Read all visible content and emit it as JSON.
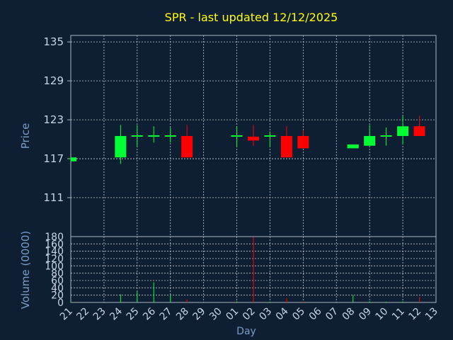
{
  "title": "SPR - last updated 12/12/2025",
  "colors": {
    "background": "#0f1f33",
    "title": "#ffff00",
    "axis_text": "#7a9cc6",
    "tick_text": "#c8d4e6",
    "frame": "#a9b4c2",
    "grid": "#c8ccd2",
    "up": "#00ff33",
    "down": "#ff0000"
  },
  "chart_data": [
    {
      "type": "candlestick",
      "ylabel": "Price",
      "yticks": [
        111,
        117,
        123,
        129,
        135
      ],
      "ylim": [
        105,
        136
      ],
      "grid": true,
      "categories": [
        "21",
        "22",
        "23",
        "24",
        "25",
        "26",
        "27",
        "28",
        "29",
        "30",
        "01",
        "02",
        "03",
        "04",
        "05",
        "06",
        "07",
        "08",
        "09",
        "10",
        "11",
        "12",
        "13"
      ],
      "candles": [
        {
          "x": "21",
          "open": 116.6,
          "close": 117.2,
          "high": 117.2,
          "low": 116.6
        },
        {
          "x": "24",
          "open": 117.2,
          "close": 120.5,
          "high": 122.2,
          "low": 116.2
        },
        {
          "x": "25",
          "open": 120.5,
          "close": 120.5,
          "high": 122.2,
          "low": 118.8
        },
        {
          "x": "26",
          "open": 120.5,
          "close": 120.5,
          "high": 122.0,
          "low": 119.5
        },
        {
          "x": "27",
          "open": 120.5,
          "close": 120.5,
          "high": 121.8,
          "low": 119.5
        },
        {
          "x": "28",
          "open": 120.5,
          "close": 117.2,
          "high": 122.2,
          "low": 117.2
        },
        {
          "x": "01",
          "open": 120.5,
          "close": 120.5,
          "high": 122.0,
          "low": 118.8
        },
        {
          "x": "02",
          "open": 120.4,
          "close": 119.8,
          "high": 122.2,
          "low": 119.0
        },
        {
          "x": "03",
          "open": 120.5,
          "close": 120.5,
          "high": 121.2,
          "low": 118.8
        },
        {
          "x": "04",
          "open": 120.5,
          "close": 117.2,
          "high": 122.0,
          "low": 117.2
        },
        {
          "x": "05",
          "open": 120.5,
          "close": 118.6,
          "high": 121.4,
          "low": 118.6
        },
        {
          "x": "08",
          "open": 118.6,
          "close": 119.2,
          "high": 119.2,
          "low": 118.6
        },
        {
          "x": "09",
          "open": 119.0,
          "close": 120.5,
          "high": 122.2,
          "low": 119.0
        },
        {
          "x": "10",
          "open": 120.5,
          "close": 120.5,
          "high": 121.8,
          "low": 119.0
        },
        {
          "x": "11",
          "open": 120.5,
          "close": 122.0,
          "high": 123.6,
          "low": 119.2
        },
        {
          "x": "12",
          "open": 122.0,
          "close": 120.5,
          "high": 123.6,
          "low": 120.5
        }
      ]
    },
    {
      "type": "bar",
      "ylabel": "Volume (0000)",
      "xlabel": "Day",
      "yticks": [
        0,
        20,
        40,
        60,
        80,
        100,
        120,
        140,
        160,
        180
      ],
      "ylim": [
        0,
        180
      ],
      "grid": true,
      "categories": [
        "21",
        "22",
        "23",
        "24",
        "25",
        "26",
        "27",
        "28",
        "29",
        "30",
        "01",
        "02",
        "03",
        "04",
        "05",
        "06",
        "07",
        "08",
        "09",
        "10",
        "11",
        "12",
        "13"
      ],
      "bars": [
        {
          "x": "21",
          "value": 2,
          "dir": "up"
        },
        {
          "x": "24",
          "value": 22,
          "dir": "up"
        },
        {
          "x": "25",
          "value": 30,
          "dir": "up"
        },
        {
          "x": "26",
          "value": 55,
          "dir": "up"
        },
        {
          "x": "27",
          "value": 20,
          "dir": "up"
        },
        {
          "x": "28",
          "value": 8,
          "dir": "down"
        },
        {
          "x": "01",
          "value": 3,
          "dir": "up"
        },
        {
          "x": "02",
          "value": 178,
          "dir": "down"
        },
        {
          "x": "03",
          "value": 2,
          "dir": "up"
        },
        {
          "x": "04",
          "value": 12,
          "dir": "down"
        },
        {
          "x": "05",
          "value": 3,
          "dir": "down"
        },
        {
          "x": "08",
          "value": 20,
          "dir": "up"
        },
        {
          "x": "09",
          "value": 3,
          "dir": "up"
        },
        {
          "x": "10",
          "value": 2,
          "dir": "up"
        },
        {
          "x": "11",
          "value": 3,
          "dir": "up"
        },
        {
          "x": "12",
          "value": 15,
          "dir": "down"
        }
      ]
    }
  ]
}
